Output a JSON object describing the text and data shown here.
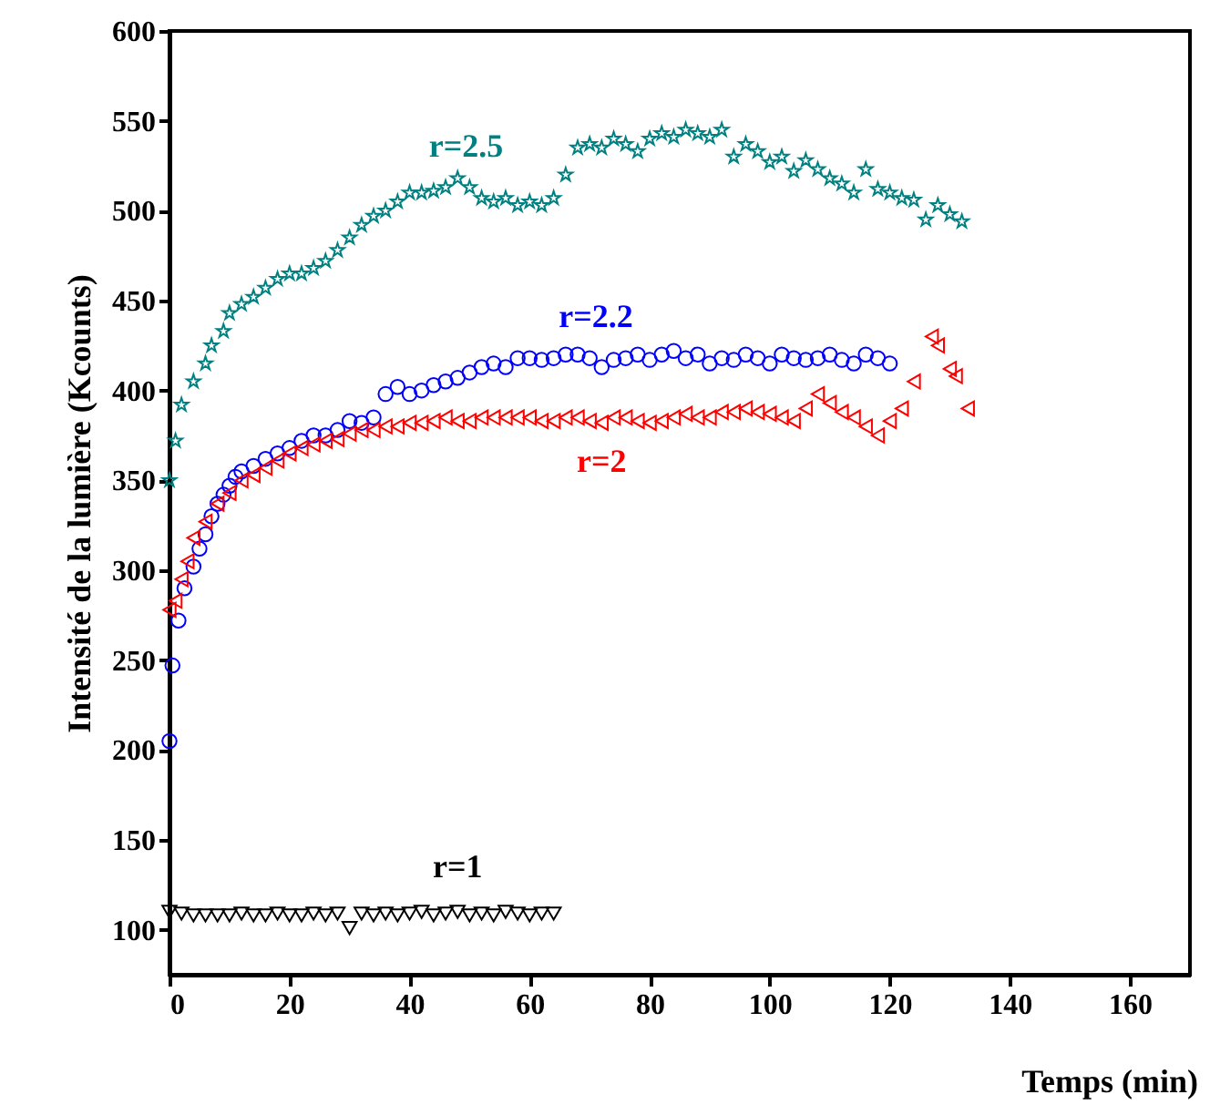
{
  "chart_data": {
    "type": "scatter",
    "xlabel": "Temps (min)",
    "ylabel": "Intensité de la lumière  (Kcounts)",
    "xlim": [
      0,
      170
    ],
    "xticks": [
      0,
      20,
      40,
      60,
      80,
      100,
      120,
      140,
      160
    ],
    "ylim": [
      75,
      600
    ],
    "yticks": [
      100,
      150,
      200,
      250,
      300,
      350,
      400,
      450,
      500,
      550,
      600
    ],
    "grid": false,
    "series": [
      {
        "name": "r=2.5",
        "color": "#008080",
        "marker": "star",
        "x": [
          0,
          1,
          2,
          4,
          6,
          7,
          9,
          10,
          12,
          14,
          16,
          18,
          20,
          22,
          24,
          26,
          28,
          30,
          32,
          34,
          36,
          38,
          40,
          42,
          44,
          46,
          48,
          50,
          52,
          54,
          56,
          58,
          60,
          62,
          64,
          66,
          68,
          70,
          72,
          74,
          76,
          78,
          80,
          82,
          84,
          86,
          88,
          90,
          92,
          94,
          96,
          98,
          100,
          102,
          104,
          106,
          108,
          110,
          112,
          114,
          116,
          118,
          120,
          122,
          124,
          126,
          128,
          130,
          132
        ],
        "values": [
          350,
          372,
          392,
          405,
          415,
          425,
          433,
          443,
          448,
          452,
          457,
          462,
          465,
          465,
          468,
          472,
          478,
          485,
          492,
          497,
          500,
          505,
          510,
          510,
          511,
          513,
          518,
          513,
          507,
          505,
          507,
          503,
          505,
          503,
          507,
          520,
          535,
          537,
          535,
          540,
          537,
          533,
          540,
          543,
          541,
          545,
          543,
          541,
          545,
          530,
          537,
          533,
          527,
          530,
          522,
          528,
          523,
          518,
          515,
          510,
          523,
          512,
          510,
          507,
          506,
          495,
          503,
          498,
          494
        ]
      },
      {
        "name": "r=2.2",
        "color": "#0000ff",
        "marker": "circle",
        "x": [
          0,
          0.5,
          1.5,
          2.5,
          4,
          5,
          6,
          7,
          8,
          9,
          10,
          11,
          12,
          14,
          16,
          18,
          20,
          22,
          24,
          26,
          28,
          30,
          32,
          34,
          36,
          38,
          40,
          42,
          44,
          46,
          48,
          50,
          52,
          54,
          56,
          58,
          60,
          62,
          64,
          66,
          68,
          70,
          72,
          74,
          76,
          78,
          80,
          82,
          84,
          86,
          88,
          90,
          92,
          94,
          96,
          98,
          100,
          102,
          104,
          106,
          108,
          110,
          112,
          114,
          116,
          118,
          120
        ],
        "values": [
          205,
          247,
          272,
          290,
          302,
          312,
          320,
          330,
          337,
          342,
          347,
          352,
          355,
          358,
          362,
          365,
          368,
          372,
          375,
          375,
          378,
          383,
          382,
          385,
          398,
          402,
          398,
          400,
          403,
          405,
          407,
          410,
          413,
          415,
          413,
          418,
          418,
          417,
          418,
          420,
          420,
          418,
          413,
          417,
          418,
          420,
          417,
          420,
          422,
          418,
          420,
          415,
          418,
          417,
          420,
          418,
          415,
          420,
          418,
          417,
          418,
          420,
          417,
          415,
          420,
          418,
          415
        ]
      },
      {
        "name": "r=2",
        "color": "#ff0000",
        "marker": "triangle-left",
        "x": [
          0,
          1,
          2,
          3,
          4,
          6,
          8,
          10,
          12,
          14,
          16,
          18,
          20,
          22,
          24,
          26,
          28,
          30,
          32,
          34,
          36,
          38,
          40,
          42,
          44,
          46,
          48,
          50,
          52,
          54,
          56,
          58,
          60,
          62,
          64,
          66,
          68,
          70,
          72,
          74,
          76,
          78,
          80,
          82,
          84,
          86,
          88,
          90,
          92,
          94,
          96,
          98,
          100,
          102,
          104,
          106,
          108,
          110,
          112,
          114,
          116,
          118,
          120,
          122,
          124,
          127,
          128,
          130,
          131,
          133
        ],
        "values": [
          278,
          283,
          295,
          305,
          318,
          327,
          337,
          343,
          350,
          353,
          357,
          361,
          365,
          368,
          370,
          372,
          373,
          376,
          378,
          378,
          380,
          380,
          382,
          382,
          383,
          385,
          383,
          383,
          385,
          385,
          385,
          385,
          385,
          383,
          383,
          385,
          385,
          383,
          382,
          385,
          385,
          383,
          382,
          383,
          385,
          387,
          385,
          385,
          388,
          388,
          390,
          388,
          387,
          385,
          383,
          390,
          398,
          393,
          388,
          385,
          380,
          375,
          383,
          390,
          405,
          430,
          425,
          412,
          408,
          390
        ]
      },
      {
        "name": "r=1",
        "color": "#000000",
        "marker": "triangle-down",
        "x": [
          0,
          2,
          4,
          6,
          8,
          10,
          12,
          14,
          16,
          18,
          20,
          22,
          24,
          26,
          28,
          30,
          32,
          34,
          36,
          38,
          40,
          42,
          44,
          46,
          48,
          50,
          52,
          54,
          56,
          58,
          60,
          62,
          64
        ],
        "values": [
          110,
          109,
          108,
          108,
          108,
          108,
          109,
          108,
          108,
          109,
          108,
          108,
          109,
          108,
          109,
          101,
          109,
          108,
          109,
          108,
          109,
          110,
          108,
          109,
          110,
          108,
          109,
          108,
          110,
          109,
          108,
          109,
          109
        ]
      }
    ]
  }
}
